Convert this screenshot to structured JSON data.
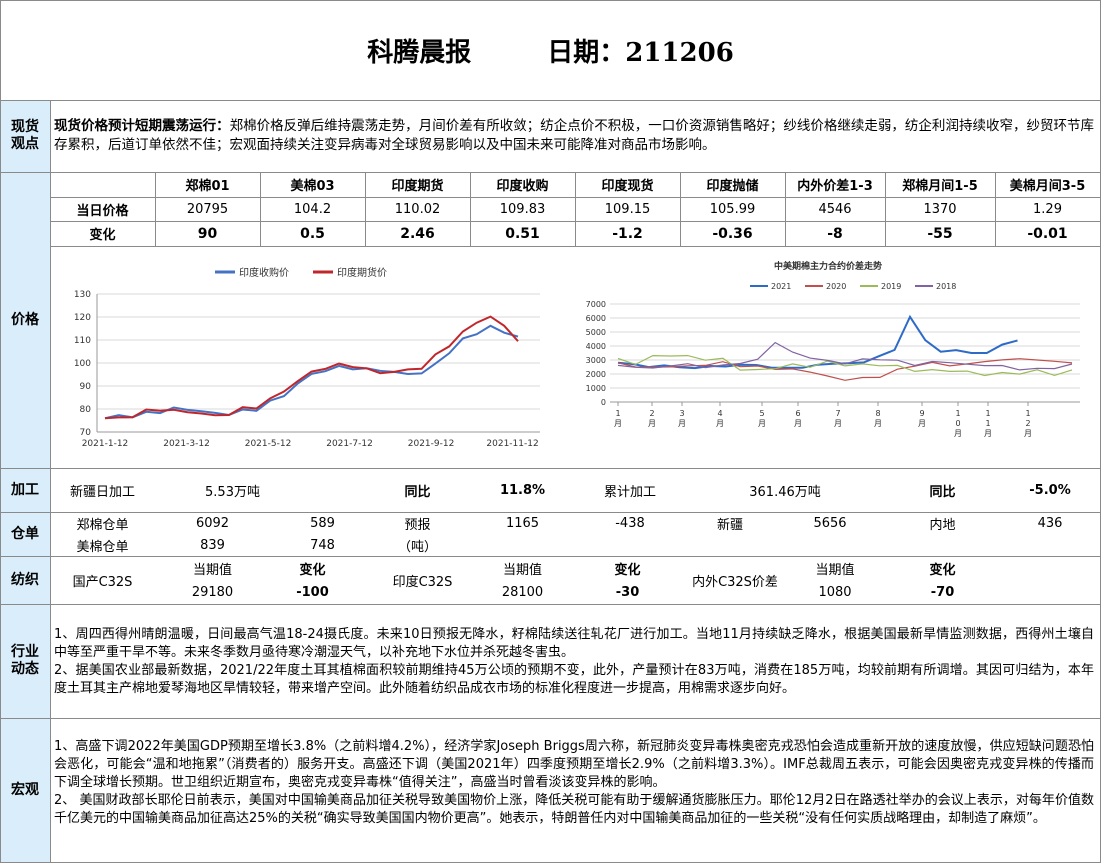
{
  "header": {
    "title": "科腾晨报",
    "date_label": "日期：211206"
  },
  "sections": {
    "spot": "现货\n观点",
    "price": "价格",
    "processing": "加工",
    "warehouse": "仓单",
    "textile": "纺织",
    "industry": "行业\n动态",
    "macro": "宏观"
  },
  "spot_view": {
    "headline": "现货价格预计短期震荡运行：",
    "body": "郑棉价格反弹后维持震荡走势，月间价差有所收敛；纺企点价不积极，一口价资源销售略好；纱线价格继续走弱，纺企利润持续收窄，纱贸环节库存累积，后道订单依然不佳；宏观面持续关注变异病毒对全球贸易影响以及中国未来可能降准对商品市场影响。"
  },
  "price_table": {
    "headers": [
      "郑棉01",
      "美棉03",
      "印度期货",
      "印度收购",
      "印度现货",
      "印度抛储",
      "内外价差1-3",
      "郑棉月间1-5",
      "美棉月间3-5"
    ],
    "row1_label": "当日价格",
    "row1": [
      "20795",
      "104.2",
      "110.02",
      "109.83",
      "109.15",
      "105.99",
      "4546",
      "1370",
      "1.29"
    ],
    "row2_label": "变化",
    "row2": [
      "90",
      "0.5",
      "2.46",
      "0.51",
      "-1.2",
      "-0.36",
      "-8",
      "-55",
      "-0.01"
    ]
  },
  "chart_data": [
    {
      "type": "line",
      "title": "",
      "legend_position": "top",
      "series": [
        {
          "name": "印度收购价",
          "color": "#4472c4",
          "values": [
            76,
            77,
            77,
            78,
            79,
            80,
            80,
            79,
            78,
            78,
            79,
            80,
            83,
            86,
            91,
            95,
            97,
            98,
            98,
            97,
            97,
            96,
            95,
            96,
            99,
            105,
            110,
            113,
            116,
            113,
            112
          ]
        },
        {
          "name": "印度期货价",
          "color": "#c0272d",
          "values": [
            76,
            76,
            77,
            79,
            80,
            79,
            79,
            78,
            77,
            78,
            80,
            81,
            84,
            88,
            92,
            96,
            98,
            99,
            99,
            97,
            96,
            96,
            97,
            98,
            103,
            108,
            113,
            118,
            120,
            116,
            110
          ]
        }
      ],
      "xticks": [
        "2021-1-12",
        "2021-3-12",
        "2021-5-12",
        "2021-7-12",
        "2021-9-12",
        "2021-11-12"
      ],
      "ylim": [
        70,
        130
      ],
      "yticks": [
        70,
        80,
        90,
        100,
        110,
        120,
        130
      ],
      "grid": true
    },
    {
      "type": "line",
      "title": "中美期棉主力合约价差走势",
      "legend_position": "top",
      "series": [
        {
          "name": "2021",
          "color": "#2e6bc7",
          "values": [
            2800,
            2700,
            2500,
            2600,
            2500,
            2400,
            2600,
            2500,
            2700,
            2600,
            2500,
            2400,
            2500,
            2600,
            2800,
            2700,
            2900,
            3200,
            3800,
            6000,
            4500,
            3500,
            3800,
            3400,
            3600,
            4000,
            4500
          ]
        },
        {
          "name": "2020",
          "color": "#c0504d",
          "values": [
            2700,
            2600,
            2400,
            2600,
            2500,
            2700,
            2800,
            2600,
            2500,
            2400,
            2300,
            2200,
            1800,
            1600,
            1700,
            1800,
            2300,
            2600,
            2800,
            2600,
            2700,
            2900,
            3000,
            3100,
            3000,
            2900,
            2800
          ]
        },
        {
          "name": "2019",
          "color": "#9bbb59",
          "values": [
            3000,
            2800,
            3200,
            3400,
            3200,
            3100,
            3000,
            2400,
            2200,
            2500,
            2600,
            2600,
            2800,
            2700,
            2600,
            2700,
            2500,
            2300,
            2200,
            2300,
            2100,
            2000,
            2000,
            2100,
            2200,
            2000,
            2200
          ]
        },
        {
          "name": "2018",
          "color": "#8064a2",
          "values": [
            2600,
            2500,
            2400,
            2600,
            2700,
            2500,
            2600,
            2800,
            3000,
            4300,
            3500,
            3200,
            2900,
            2800,
            3000,
            3100,
            2900,
            2700,
            2800,
            2900,
            2600,
            2700,
            2500,
            2400,
            2300,
            2500,
            2600
          ]
        }
      ],
      "ylim": [
        0,
        7000
      ],
      "yticks": [
        0,
        1000,
        2000,
        3000,
        4000,
        5000,
        6000,
        7000
      ],
      "xticks": [
        "1\n月",
        "2\n月",
        "3\n月",
        "4\n月",
        "5\n月",
        "6\n月",
        "7\n月",
        "8\n月",
        "9\n月",
        "1\n0\n月",
        "1\n1\n月",
        "1\n2\n月"
      ],
      "grid": true
    }
  ],
  "processing": {
    "xj_label": "新疆日加工",
    "xj_value": "5.53万吨",
    "yoy_label": "同比",
    "yoy1": "11.8%",
    "cum_label": "累计加工",
    "cum_value": "361.46万吨",
    "yoy_label2": "同比",
    "yoy2": "-5.0%"
  },
  "warehouse": {
    "zm_label": "郑棉仓单",
    "zm_v1": "6092",
    "zm_v2": "589",
    "yb_label": "预报",
    "yb_unit": "（吨）",
    "yb_v1": "1165",
    "yb_v2": "-438",
    "xj_label": "新疆",
    "xj_value": "5656",
    "nd_label": "内地",
    "nd_value": "436",
    "mm_label": "美棉仓单",
    "mm_v1": "839",
    "mm_v2": "748"
  },
  "textile": {
    "cur_label": "当期值",
    "chg_label": "变化",
    "a_label": "国产C32S",
    "a_cur": "29180",
    "a_chg": "-100",
    "b_label": "印度C32S",
    "b_cur": "28100",
    "b_chg": "-30",
    "c_label": "内外C32S价差",
    "c_cur": "1080",
    "c_chg": "-70"
  },
  "industry_news": [
    "1、周四西得州晴朗温暖，日间最高气温18-24摄氏度。未来10日预报无降水，籽棉陆续送往轧花厂进行加工。当地11月持续缺乏降水，根据美国最新旱情监测数据，西得州土壤自中等至严重干旱不等。未来冬季数月亟待寒冷潮湿天气，以补充地下水位并杀死越冬害虫。",
    "2、据美国农业部最新数据，2021/22年度土耳其植棉面积较前期维持45万公顷的预期不变，此外，产量预计在83万吨，消费在185万吨，均较前期有所调增。其因可归结为，本年度土耳其主产棉地爱琴海地区旱情较轻，带来增产空间。此外随着纺织品成衣市场的标准化程度进一步提高，用棉需求逐步向好。"
  ],
  "macro_news": [
    "1、高盛下调2022年美国GDP预期至增长3.8%（之前料增4.2%），经济学家Joseph Briggs周六称，新冠肺炎变异毒株奥密克戎恐怕会造成重新开放的速度放慢，供应短缺问题恐怕会恶化，可能会“温和地拖累”（消费者的）服务开支。高盛还下调（美国2021年）四季度预期至增长2.9%（之前料增3.3%）。IMF总裁周五表示，可能会因奥密克戎变异株的传播而下调全球增长预期。世卫组织近期宣布，奥密克戎变异毒株“值得关注”，高盛当时曾看淡该变异株的影响。",
    "2、 美国财政部长耶伦日前表示，美国对中国输美商品加征关税导致美国物价上涨，降低关税可能有助于缓解通货膨胀压力。耶伦12月2日在路透社举办的会议上表示，对每年价值数千亿美元的中国输美商品加征高达25%的关税“确实导致美国国内物价更高”。她表示，特朗普任内对中国输美商品加征的一些关税“没有任何实质战略理由，却制造了麻烦”。"
  ]
}
